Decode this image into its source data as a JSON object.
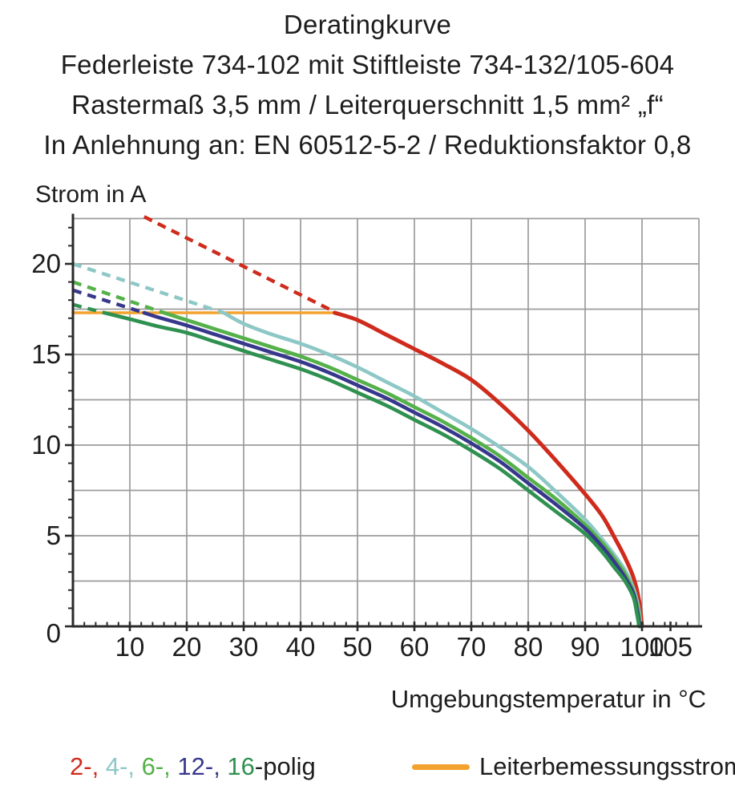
{
  "title": {
    "line1": "Deratingkurve",
    "line2": "Federleiste 734-102 mit Stiftleiste 734-132/105-604",
    "line3": "Rastermaß 3,5 mm / Leiterquerschnitt 1,5 mm² „f“",
    "line4": "In Anlehnung an: EN 60512-5-2 / Reduktionsfaktor 0,8"
  },
  "axes": {
    "y_label": "Strom in A",
    "x_label": "Umgebungstemperatur in °C",
    "x_ticks": [
      10,
      20,
      30,
      40,
      50,
      60,
      70,
      80,
      90,
      100,
      105
    ],
    "y_ticks": [
      0,
      5,
      10,
      15,
      20
    ]
  },
  "legend": {
    "series_parts": [
      {
        "text": "2-, ",
        "color_key": "red"
      },
      {
        "text": "4-, ",
        "color_key": "cyan"
      },
      {
        "text": "6-, ",
        "color_key": "green"
      },
      {
        "text": "12-, ",
        "color_key": "navy"
      },
      {
        "text": "16",
        "color_key": "darkgreen"
      },
      {
        "text": "-polig",
        "color_key": "text"
      }
    ],
    "rated_label": "Leiterbemessungsstrom"
  },
  "colors": {
    "red": "#cf2b1c",
    "cyan": "#8dc8c6",
    "green": "#55b149",
    "navy": "#37388c",
    "darkgreen": "#2f9150",
    "orange": "#f3a22d",
    "grid": "#9b9b9b",
    "axis": "#2b2b2b",
    "text": "#1d1d1d"
  },
  "chart_data": {
    "type": "line",
    "title": "Deratingkurve",
    "xlabel": "Umgebungstemperatur in °C",
    "ylabel": "Strom in A",
    "xlim": [
      0,
      110
    ],
    "ylim": [
      0,
      22.5
    ],
    "x_grid_step": 10,
    "y_grid_step": 2.5,
    "grid": true,
    "legend_position": "bottom",
    "rated_current_a": 17.3,
    "rated_line_x_range": [
      0,
      46
    ],
    "series": [
      {
        "name": "2-polig",
        "color_key": "red",
        "dashed": [
          [
            12.5,
            22.6
          ],
          [
            46,
            17.35
          ]
        ],
        "solid": [
          [
            46,
            17.3
          ],
          [
            50,
            16.9
          ],
          [
            55,
            16.1
          ],
          [
            60,
            15.3
          ],
          [
            65,
            14.5
          ],
          [
            70,
            13.6
          ],
          [
            75,
            12.3
          ],
          [
            80,
            10.8
          ],
          [
            85,
            9.1
          ],
          [
            90,
            7.3
          ],
          [
            93,
            6.1
          ],
          [
            95,
            5.0
          ],
          [
            97,
            3.8
          ],
          [
            98.5,
            2.7
          ],
          [
            99.5,
            1.4
          ],
          [
            100,
            0
          ]
        ]
      },
      {
        "name": "4-polig",
        "color_key": "cyan",
        "dashed": [
          [
            0,
            20.0
          ],
          [
            26.5,
            17.3
          ]
        ],
        "solid": [
          [
            26.5,
            17.3
          ],
          [
            30,
            16.7
          ],
          [
            35,
            16.1
          ],
          [
            40,
            15.6
          ],
          [
            45,
            15.0
          ],
          [
            50,
            14.3
          ],
          [
            55,
            13.5
          ],
          [
            60,
            12.7
          ],
          [
            65,
            11.8
          ],
          [
            70,
            10.9
          ],
          [
            75,
            9.9
          ],
          [
            80,
            8.8
          ],
          [
            85,
            7.4
          ],
          [
            90,
            5.9
          ],
          [
            93,
            4.8
          ],
          [
            95,
            4.0
          ],
          [
            97,
            3.1
          ],
          [
            98.5,
            2.1
          ],
          [
            99.4,
            1.0
          ],
          [
            99.8,
            0
          ]
        ]
      },
      {
        "name": "6-polig",
        "color_key": "green",
        "dashed": [
          [
            0,
            19.0
          ],
          [
            16,
            17.3
          ]
        ],
        "solid": [
          [
            16,
            17.3
          ],
          [
            20,
            16.9
          ],
          [
            25,
            16.4
          ],
          [
            30,
            15.9
          ],
          [
            35,
            15.4
          ],
          [
            40,
            14.9
          ],
          [
            45,
            14.3
          ],
          [
            50,
            13.6
          ],
          [
            55,
            12.9
          ],
          [
            60,
            12.1
          ],
          [
            65,
            11.3
          ],
          [
            70,
            10.4
          ],
          [
            75,
            9.4
          ],
          [
            80,
            8.2
          ],
          [
            85,
            7.0
          ],
          [
            90,
            5.6
          ],
          [
            93,
            4.6
          ],
          [
            95,
            3.8
          ],
          [
            97,
            2.9
          ],
          [
            98.5,
            1.9
          ],
          [
            99.3,
            0.9
          ],
          [
            99.7,
            0
          ]
        ]
      },
      {
        "name": "12-polig",
        "color_key": "navy",
        "dashed": [
          [
            0,
            18.55
          ],
          [
            12.5,
            17.3
          ]
        ],
        "solid": [
          [
            12.5,
            17.3
          ],
          [
            15,
            17.05
          ],
          [
            20,
            16.6
          ],
          [
            25,
            16.1
          ],
          [
            30,
            15.6
          ],
          [
            35,
            15.1
          ],
          [
            40,
            14.6
          ],
          [
            45,
            14.0
          ],
          [
            50,
            13.3
          ],
          [
            55,
            12.6
          ],
          [
            60,
            11.8
          ],
          [
            65,
            11.0
          ],
          [
            70,
            10.1
          ],
          [
            75,
            9.1
          ],
          [
            80,
            7.9
          ],
          [
            85,
            6.7
          ],
          [
            90,
            5.4
          ],
          [
            93,
            4.4
          ],
          [
            95,
            3.6
          ],
          [
            97,
            2.7
          ],
          [
            98.5,
            1.8
          ],
          [
            99.2,
            0.8
          ],
          [
            99.6,
            0
          ]
        ]
      },
      {
        "name": "16-polig",
        "color_key": "darkgreen",
        "dashed": [
          [
            0,
            17.75
          ],
          [
            5.5,
            17.3
          ]
        ],
        "solid": [
          [
            5.5,
            17.3
          ],
          [
            10,
            16.95
          ],
          [
            15,
            16.55
          ],
          [
            20,
            16.2
          ],
          [
            25,
            15.7
          ],
          [
            30,
            15.2
          ],
          [
            35,
            14.7
          ],
          [
            40,
            14.2
          ],
          [
            45,
            13.6
          ],
          [
            50,
            12.9
          ],
          [
            55,
            12.2
          ],
          [
            60,
            11.4
          ],
          [
            65,
            10.6
          ],
          [
            70,
            9.7
          ],
          [
            75,
            8.7
          ],
          [
            80,
            7.5
          ],
          [
            85,
            6.3
          ],
          [
            90,
            5.1
          ],
          [
            93,
            4.1
          ],
          [
            95,
            3.3
          ],
          [
            97,
            2.5
          ],
          [
            98.5,
            1.6
          ],
          [
            99.1,
            0.7
          ],
          [
            99.5,
            0
          ]
        ]
      }
    ]
  }
}
